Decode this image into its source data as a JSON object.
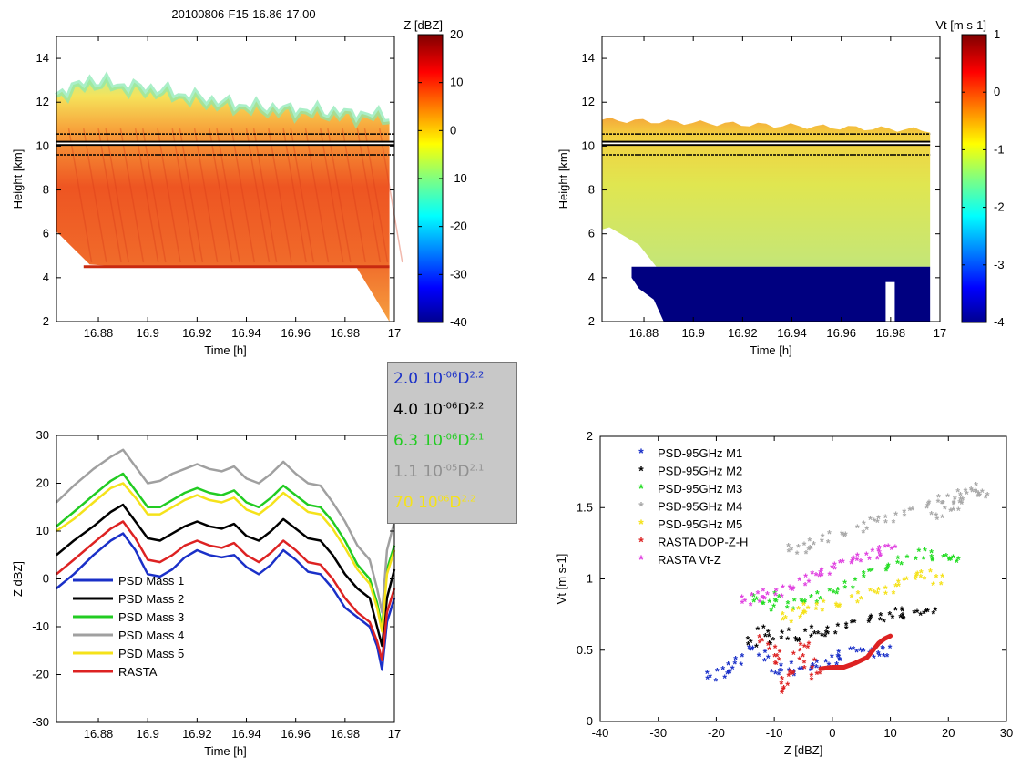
{
  "chart_data": [
    {
      "type": "heatmap",
      "title": "20100806-F15-16.86-17.00",
      "xlabel": "Time [h]",
      "ylabel": "Height [km]",
      "xlim": [
        16.863,
        17.0
      ],
      "ylim": [
        2,
        15
      ],
      "xticks": [
        16.88,
        16.9,
        16.92,
        16.94,
        16.96,
        16.98,
        17
      ],
      "xtick_labels": [
        "16.88",
        "16.9",
        "16.92",
        "16.94",
        "16.96",
        "16.98",
        "17"
      ],
      "yticks": [
        2,
        4,
        6,
        8,
        10,
        12,
        14
      ],
      "colorbar": {
        "label": "Z [dBZ]",
        "range": [
          -40,
          20
        ],
        "ticks": [
          20,
          10,
          0,
          -10,
          -20,
          -30,
          -40
        ],
        "colormap": "jet"
      },
      "reference_lines_km": [
        10.55,
        10.2,
        10.05,
        9.6
      ],
      "data_description_values": {
        "cloud_top_km": [
          12.3,
          12.9,
          12.7,
          12.5,
          12.2,
          11.9,
          11.7,
          11.6,
          11.5,
          11.4,
          11.3
        ],
        "cloud_base_km": [
          6.1,
          4.6,
          4.5,
          4.5,
          4.5,
          4.5,
          4.5,
          4.5,
          4.5,
          4.5,
          2.0
        ],
        "typical_core_dBZ": 12,
        "top_edge_dBZ": -15
      }
    },
    {
      "type": "heatmap",
      "title": "",
      "xlabel": "Time [h]",
      "ylabel": "Height [km]",
      "xlim": [
        16.863,
        17.0
      ],
      "ylim": [
        2,
        15
      ],
      "xticks": [
        16.88,
        16.9,
        16.92,
        16.94,
        16.96,
        16.98,
        17
      ],
      "xtick_labels": [
        "16.88",
        "16.9",
        "16.92",
        "16.94",
        "16.96",
        "16.98",
        "17"
      ],
      "yticks": [
        2,
        4,
        6,
        8,
        10,
        12,
        14
      ],
      "colorbar": {
        "label": "Vt [m s-1]",
        "range": [
          -4,
          1
        ],
        "ticks": [
          1,
          0,
          -1,
          -2,
          -3,
          -4
        ],
        "colormap": "jet"
      },
      "reference_lines_km": [
        10.55,
        10.2,
        10.05,
        9.6
      ],
      "data_description_values": {
        "cloud_top_km": 11.2,
        "lower_cutoff_km": 4.5,
        "typical_Vt": -0.8,
        "below_cutoff_Vt": -4
      }
    },
    {
      "type": "line",
      "title": "",
      "xlabel": "Time [h]",
      "ylabel": "Z  dBZ]",
      "xlim": [
        16.863,
        17.0
      ],
      "ylim": [
        -30,
        30
      ],
      "xticks": [
        16.88,
        16.9,
        16.92,
        16.94,
        16.96,
        16.98,
        17
      ],
      "xtick_labels": [
        "16.88",
        "16.9",
        "16.92",
        "16.94",
        "16.96",
        "16.98",
        "17"
      ],
      "yticks": [
        -30,
        -20,
        -10,
        0,
        10,
        20,
        30
      ],
      "legend": "bottom-left",
      "x": [
        16.863,
        16.87,
        16.878,
        16.885,
        16.89,
        16.895,
        16.9,
        16.905,
        16.91,
        16.915,
        16.92,
        16.925,
        16.93,
        16.935,
        16.94,
        16.945,
        16.95,
        16.955,
        16.96,
        16.965,
        16.97,
        16.975,
        16.98,
        16.985,
        16.99,
        16.993,
        16.995,
        16.997,
        17.0
      ],
      "series": [
        {
          "name": "PSD Mass 1",
          "color": "#1a30c8",
          "values": [
            -2,
            1,
            5,
            8,
            9.5,
            6,
            1,
            0.5,
            2,
            4.5,
            6,
            5,
            4.5,
            5,
            2.5,
            1,
            3,
            6,
            4,
            1.5,
            1,
            -2,
            -6,
            -8,
            -10,
            -14,
            -19,
            -9,
            -4
          ]
        },
        {
          "name": "PSD Mass 2",
          "color": "#000000",
          "values": [
            5,
            8,
            11,
            14,
            15.5,
            12,
            8.5,
            8,
            9.5,
            11,
            12,
            11,
            10.5,
            11.5,
            9,
            8,
            10,
            12.5,
            10.5,
            8.5,
            8,
            5,
            1,
            -2,
            -4,
            -10,
            -14,
            -4,
            2
          ]
        },
        {
          "name": "PSD Mass 3",
          "color": "#22cc22",
          "values": [
            11,
            14,
            17.5,
            20.5,
            22,
            18.5,
            15,
            15,
            16.5,
            18,
            19,
            18,
            17.5,
            18.5,
            16,
            15,
            17,
            19.5,
            17.5,
            15.5,
            15,
            12,
            8,
            3,
            0,
            -5,
            -10,
            2,
            7
          ]
        },
        {
          "name": "PSD Mass 4",
          "color": "#a0a0a0",
          "values": [
            16,
            19.5,
            23,
            25.5,
            27,
            23.5,
            20,
            20.5,
            22,
            23,
            24,
            23,
            22.5,
            23.5,
            21,
            20,
            22,
            24.5,
            22,
            20,
            19.5,
            16,
            12,
            7,
            4,
            -2,
            -7,
            6,
            12
          ]
        },
        {
          "name": "PSD Mass 5",
          "color": "#f5e21a",
          "values": [
            10,
            12.5,
            16,
            19,
            20,
            17,
            13.5,
            13.5,
            15,
            16.5,
            17.5,
            16.5,
            16,
            17,
            14.5,
            13.5,
            15.5,
            18,
            16,
            14,
            13.5,
            10.5,
            6.5,
            2,
            -1,
            -6,
            -11,
            1,
            6
          ]
        },
        {
          "name": "RASTA",
          "color": "#dd2222",
          "values": [
            1,
            4,
            7.5,
            10.5,
            12,
            8.5,
            4,
            3.5,
            5,
            7,
            8,
            7,
            6.5,
            7.5,
            5,
            3.5,
            5.5,
            8,
            6,
            3.5,
            3,
            0,
            -4,
            -7,
            -9,
            -13,
            -17,
            -7,
            -2
          ]
        }
      ]
    },
    {
      "type": "scatter",
      "title": "",
      "xlabel": "Z [dBZ]",
      "ylabel": "Vt [m s-1]",
      "xlim": [
        -40,
        30
      ],
      "ylim": [
        0,
        2
      ],
      "xticks": [
        -40,
        -30,
        -20,
        -10,
        0,
        10,
        20,
        30
      ],
      "yticks": [
        0,
        0.5,
        1,
        1.5,
        2
      ],
      "ytick_labels": [
        "0",
        "0.5",
        "1",
        "1.5",
        "2"
      ],
      "legend": "top-left",
      "series": [
        {
          "name": "PSD-95GHz M1",
          "color": "#1a30c8",
          "points": [
            [
              -21,
              0.31
            ],
            [
              -19,
              0.33
            ],
            [
              -17,
              0.36
            ],
            [
              -16,
              0.42
            ],
            [
              -14,
              0.52
            ],
            [
              -12,
              0.45
            ],
            [
              -10,
              0.33
            ],
            [
              -8,
              0.38
            ],
            [
              -6,
              0.33
            ],
            [
              -4,
              0.36
            ],
            [
              -2,
              0.39
            ],
            [
              0,
              0.42
            ],
            [
              2,
              0.45
            ],
            [
              4,
              0.47
            ],
            [
              6,
              0.46
            ],
            [
              8,
              0.47
            ],
            [
              9,
              0.48
            ]
          ]
        },
        {
          "name": "PSD-95GHz M2",
          "color": "#000000",
          "points": [
            [
              -14,
              0.55
            ],
            [
              -12,
              0.62
            ],
            [
              -10,
              0.56
            ],
            [
              -8,
              0.6
            ],
            [
              -6,
              0.58
            ],
            [
              -4,
              0.62
            ],
            [
              -2,
              0.6
            ],
            [
              0,
              0.64
            ],
            [
              3,
              0.66
            ],
            [
              6,
              0.7
            ],
            [
              9,
              0.72
            ],
            [
              11,
              0.75
            ],
            [
              13,
              0.74
            ],
            [
              15,
              0.73
            ],
            [
              17,
              0.74
            ]
          ]
        },
        {
          "name": "PSD-95GHz M3",
          "color": "#22dd22",
          "points": [
            [
              -13,
              0.85
            ],
            [
              -11,
              0.8
            ],
            [
              -9,
              0.86
            ],
            [
              -7,
              0.81
            ],
            [
              -5,
              0.85
            ],
            [
              -3,
              0.86
            ],
            [
              0,
              0.9
            ],
            [
              3,
              0.96
            ],
            [
              6,
              1.02
            ],
            [
              9,
              1.06
            ],
            [
              12,
              1.12
            ],
            [
              15,
              1.16
            ],
            [
              18,
              1.15
            ],
            [
              20,
              1.12
            ],
            [
              21,
              1.1
            ]
          ]
        },
        {
          "name": "PSD-95GHz M4",
          "color": "#a8a8a8",
          "points": [
            [
              -7,
              1.2
            ],
            [
              -5,
              1.2
            ],
            [
              -3,
              1.23
            ],
            [
              -1,
              1.28
            ],
            [
              2,
              1.32
            ],
            [
              5,
              1.35
            ],
            [
              7,
              1.4
            ],
            [
              10,
              1.42
            ],
            [
              13,
              1.45
            ],
            [
              16,
              1.5
            ],
            [
              19,
              1.55
            ],
            [
              21,
              1.5
            ],
            [
              23,
              1.55
            ],
            [
              25,
              1.58
            ],
            [
              26,
              1.55
            ],
            [
              24,
              1.62
            ],
            [
              22,
              1.58
            ],
            [
              20,
              1.5
            ],
            [
              18,
              1.42
            ]
          ]
        },
        {
          "name": "PSD-95GHz M5",
          "color": "#f5e21a",
          "points": [
            [
              -8,
              0.72
            ],
            [
              -6,
              0.75
            ],
            [
              -4,
              0.78
            ],
            [
              -2,
              0.8
            ],
            [
              1,
              0.82
            ],
            [
              4,
              0.86
            ],
            [
              7,
              0.9
            ],
            [
              10,
              0.92
            ],
            [
              12,
              0.96
            ],
            [
              14,
              1.0
            ],
            [
              16,
              1.02
            ],
            [
              18,
              0.98
            ]
          ]
        },
        {
          "name": "RASTA DOP-Z-H",
          "color": "#dd2222",
          "points": [
            [
              -12,
              0.56
            ],
            [
              -10,
              0.48
            ],
            [
              -9,
              0.42
            ],
            [
              -8,
              0.28
            ],
            [
              -7,
              0.35
            ],
            [
              -6,
              0.46
            ],
            [
              -5,
              0.52
            ],
            [
              -4,
              0.4
            ],
            [
              -3,
              0.3
            ],
            [
              -9,
              0.2
            ]
          ]
        },
        {
          "name": "RASTA Vt-Z",
          "color": "#e040e0",
          "points": [
            [
              -15,
              0.84
            ],
            [
              -13,
              0.86
            ],
            [
              -11,
              0.88
            ],
            [
              -9,
              0.9
            ],
            [
              -7,
              0.94
            ],
            [
              -5,
              0.98
            ],
            [
              -3,
              1.02
            ],
            [
              -1,
              1.05
            ],
            [
              1,
              1.08
            ],
            [
              3,
              1.11
            ],
            [
              5,
              1.14
            ],
            [
              7,
              1.16
            ],
            [
              9,
              1.18
            ],
            [
              10,
              1.19
            ]
          ]
        },
        {
          "name": "RASTA",
          "color": "#dd2222",
          "points": [
            [
              -2,
              0.37
            ],
            [
              0,
              0.38
            ],
            [
              2,
              0.38
            ],
            [
              4,
              0.41
            ],
            [
              6,
              0.45
            ],
            [
              7,
              0.5
            ],
            [
              8,
              0.55
            ],
            [
              9,
              0.58
            ],
            [
              10,
              0.6
            ]
          ]
        }
      ]
    }
  ],
  "coefficients": [
    {
      "coef": "2.0 10",
      "exp": "-06",
      "D": "D",
      "pow": "2.2",
      "color": "#1a30c8"
    },
    {
      "coef": "4.0 10",
      "exp": "-06",
      "D": "D",
      "pow": "2.2",
      "color": "#000000"
    },
    {
      "coef": "6.3 10",
      "exp": "-06",
      "D": "D",
      "pow": "2.1",
      "color": "#22cc22"
    },
    {
      "coef": "1.1 10",
      "exp": "-05",
      "D": "D",
      "pow": "2.1",
      "color": "#909090"
    },
    {
      "coef": "70 10",
      "exp": "06",
      "D": "D",
      "pow": "2.2",
      "color": "#f5e21a"
    }
  ]
}
